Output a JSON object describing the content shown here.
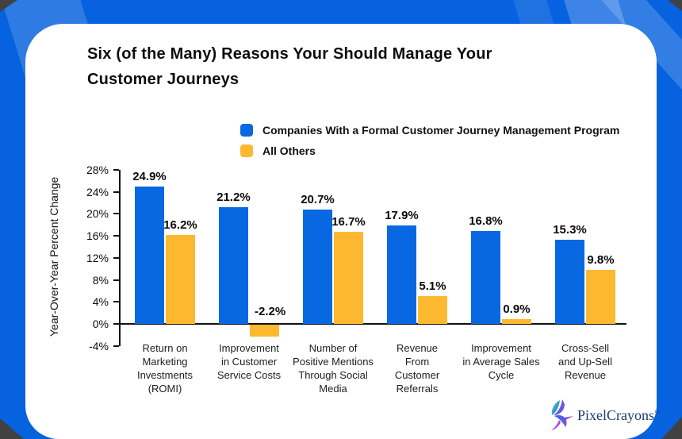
{
  "title_lines": [
    "Six (of the Many) Reasons Your Should Manage Your",
    "Customer Journeys"
  ],
  "colors": {
    "background": "#0762df",
    "card": "#ffffff",
    "axis": "#111111",
    "series_blue": "#0768e2",
    "series_orange": "#fcb930",
    "corner_dark": "#414141"
  },
  "chart_data": {
    "type": "bar",
    "title": "Six (of the Many) Reasons Your Should Manage Your Customer Journeys",
    "ylabel": "Year-Over-Year Percent Change",
    "xlabel": "",
    "ylim": [
      -4,
      28
    ],
    "ytick_step": 4,
    "value_suffix": "%",
    "grid": false,
    "legend_position": "top-center",
    "categories": [
      [
        "Return on",
        "Marketing",
        "Investments",
        "(ROMI)"
      ],
      [
        "Improvement",
        "in Customer",
        "Service Costs"
      ],
      [
        "Number of",
        "Positive Mentions",
        "Through Social",
        "Media"
      ],
      [
        "Revenue",
        "From",
        "Customer",
        "Referrals"
      ],
      [
        "Improvement",
        "in Average Sales",
        "Cycle"
      ],
      [
        "Cross-Sell",
        "and Up-Sell",
        "Revenue"
      ]
    ],
    "series": [
      {
        "name": "Companies With a Formal Customer Journey Management Program",
        "color": "#0768e2",
        "values": [
          24.9,
          21.2,
          20.7,
          17.9,
          16.8,
          15.3
        ]
      },
      {
        "name": "All Others",
        "color": "#fcb930",
        "values": [
          16.2,
          -2.2,
          16.7,
          5.1,
          0.9,
          9.8
        ]
      }
    ]
  },
  "brand": {
    "name": "PixelCrayons",
    "tm": "™",
    "icon": "hummingbird-icon"
  }
}
